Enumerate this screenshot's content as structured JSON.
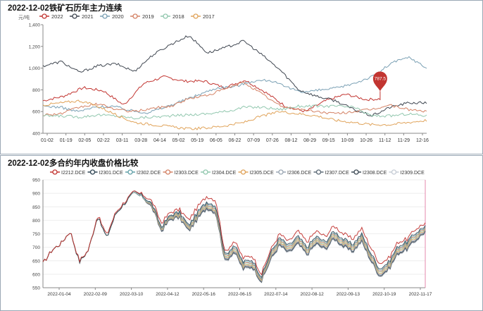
{
  "panels": [
    {
      "title": "2022-12-02铁矿石历年主力连续",
      "chart_data": {
        "type": "line",
        "ylabel": "元/吨",
        "ylim": [
          400,
          1400
        ],
        "yticks": [
          400,
          600,
          800,
          1000,
          1200,
          1400
        ],
        "x_ticklabels": [
          "01-02",
          "01-19",
          "02-05",
          "02-22",
          "03-11",
          "03-28",
          "04-14",
          "05-02",
          "05-19",
          "06-05",
          "06-22",
          "07-09",
          "07-26",
          "08-12",
          "08-29",
          "09-15",
          "10-09",
          "10-26",
          "11-12",
          "11-29",
          "12-16"
        ],
        "legend_position": "top-left",
        "grid": false,
        "annotation": {
          "series": "2022",
          "value": 787.5,
          "label": "787.5",
          "color": "#c23531"
        },
        "series": [
          {
            "name": "2022",
            "color": "#c23531",
            "values": [
              700,
              740,
              820,
              790,
              660,
              860,
              920,
              880,
              880,
              820,
              890,
              780,
              650,
              600,
              700,
              760,
              710,
              720,
              710,
              787.5
            ]
          },
          {
            "name": "2021",
            "color": "#3f4650",
            "values": [
              1020,
              1060,
              960,
              1020,
              1040,
              970,
              1120,
              1220,
              1300,
              1140,
              1190,
              1250,
              1120,
              980,
              800,
              740,
              700,
              620,
              560,
              640,
              680,
              680
            ]
          },
          {
            "name": "2020",
            "color": "#7aa0b4",
            "values": [
              650,
              640,
              600,
              640,
              650,
              610,
              590,
              640,
              700,
              760,
              820,
              830,
              880,
              890,
              820,
              780,
              800,
              820,
              870,
              930,
              1050,
              1100,
              1000
            ]
          },
          {
            "name": "2019",
            "color": "#d48265",
            "values": [
              570,
              580,
              640,
              670,
              620,
              600,
              630,
              650,
              720,
              750,
              810,
              870,
              760,
              650,
              620,
              600,
              580,
              600,
              620,
              660,
              620,
              600
            ]
          },
          {
            "name": "2018",
            "color": "#91c7ae",
            "values": [
              560,
              560,
              550,
              570,
              560,
              540,
              550,
              560,
              570,
              580,
              600,
              640,
              640,
              620,
              650,
              650,
              650,
              640,
              560,
              560,
              580,
              560
            ]
          },
          {
            "name": "2017",
            "color": "#e0a35a",
            "values": [
              660,
              680,
              700,
              650,
              570,
              500,
              480,
              460,
              440,
              450,
              470,
              500,
              560,
              600,
              580,
              560,
              520,
              500,
              480,
              480,
              500,
              520
            ]
          }
        ]
      }
    },
    {
      "title": "2022-12-02多合约年内收盘价格比较",
      "chart_data": {
        "type": "line",
        "ylim": [
          550,
          950
        ],
        "yticks": [
          550,
          600,
          650,
          700,
          750,
          800,
          850,
          900,
          950
        ],
        "x_ticklabels": [
          "2022-01-04",
          "2022-02-09",
          "2022-03-10",
          "2022-04-12",
          "2022-05-16",
          "2022-06-15",
          "2022-07-14",
          "2022-08-12",
          "2022-09-13",
          "2022-10-19",
          "2022-11-17"
        ],
        "legend_position": "top",
        "grid": true,
        "x_dates": [
          "2022-01-04",
          "2022-01-14",
          "2022-01-25",
          "2022-02-09",
          "2022-02-17",
          "2022-02-25",
          "2022-03-04",
          "2022-03-10",
          "2022-03-16",
          "2022-03-23",
          "2022-03-30",
          "2022-04-06",
          "2022-04-12",
          "2022-04-19",
          "2022-04-26",
          "2022-05-06",
          "2022-05-16",
          "2022-05-23",
          "2022-05-30",
          "2022-06-07",
          "2022-06-15",
          "2022-06-22",
          "2022-06-29",
          "2022-07-06",
          "2022-07-14",
          "2022-07-21",
          "2022-07-28",
          "2022-08-04",
          "2022-08-12",
          "2022-08-19",
          "2022-08-26",
          "2022-09-02",
          "2022-09-13",
          "2022-09-20",
          "2022-09-27",
          "2022-10-11",
          "2022-10-19",
          "2022-10-26",
          "2022-11-02",
          "2022-11-09",
          "2022-11-17",
          "2022-11-24",
          "2022-12-02"
        ],
        "series": [
          {
            "name": "I2212.DCE",
            "color": "#c23531",
            "values": [
              640,
              690,
              715,
              760,
              650,
              690,
              820,
              745,
              830,
              870,
              905,
              895,
              870,
              790,
              830,
              840,
              800,
              850,
              890,
              875,
              680,
              725,
              660,
              670,
              600,
              690,
              750,
              720,
              760,
              720,
              760,
              740,
              780,
              750,
              730,
              770,
              700,
              640,
              660,
              720,
              730,
              770,
              790
            ]
          },
          {
            "name": "I2301.DCE",
            "color": "#2f4554",
            "values": [
              640,
              690,
              715,
              760,
              645,
              690,
              815,
              735,
              825,
              865,
              905,
              890,
              860,
              775,
              820,
              830,
              780,
              830,
              870,
              855,
              670,
              710,
              645,
              655,
              590,
              680,
              735,
              705,
              740,
              700,
              740,
              720,
              760,
              730,
              710,
              750,
              680,
              620,
              645,
              705,
              720,
              755,
              780
            ]
          },
          {
            "name": "I2302.DCE",
            "color": "#61a0a8",
            "values": [
              640,
              690,
              715,
              760,
              645,
              690,
              815,
              735,
              825,
              865,
              900,
              885,
              858,
              772,
              817,
              826,
              776,
              826,
              866,
              850,
              666,
              705,
              640,
              650,
              585,
              676,
              730,
              700,
              735,
              695,
              735,
              715,
              755,
              725,
              705,
              745,
              675,
              615,
              640,
              700,
              715,
              750,
              776
            ]
          },
          {
            "name": "I2303.DCE",
            "color": "#d48265",
            "values": [
              640,
              690,
              715,
              760,
              645,
              690,
              815,
              735,
              825,
              865,
              900,
              885,
              856,
              770,
              815,
              823,
              773,
              822,
              862,
              846,
              662,
              701,
              636,
              646,
              582,
              672,
              726,
              696,
              731,
              691,
              731,
              711,
              751,
              721,
              701,
              741,
              671,
              611,
              636,
              696,
              711,
              746,
              773
            ]
          },
          {
            "name": "I2304.DCE",
            "color": "#91c7ae",
            "values": [
              640,
              690,
              715,
              760,
              645,
              690,
              815,
              735,
              825,
              865,
              900,
              885,
              854,
              768,
              812,
              820,
              770,
              818,
              858,
              842,
              658,
              697,
              632,
              642,
              580,
              668,
              722,
              692,
              727,
              687,
              727,
              707,
              747,
              717,
              697,
              737,
              667,
              607,
              632,
              692,
              707,
              742,
              770
            ]
          },
          {
            "name": "I2305.DCE",
            "color": "#e0a35a",
            "values": [
              640,
              690,
              715,
              760,
              645,
              690,
              815,
              735,
              825,
              865,
              900,
              885,
              852,
              766,
              810,
              817,
              767,
              815,
              855,
              838,
              655,
              693,
              628,
              638,
              578,
              664,
              718,
              688,
              723,
              683,
              723,
              703,
              743,
              713,
              693,
              733,
              663,
              603,
              628,
              688,
              703,
              738,
              767
            ]
          },
          {
            "name": "I2306.DCE",
            "color": "#9ba7b4",
            "values": [
              640,
              690,
              715,
              760,
              645,
              690,
              815,
              735,
              825,
              865,
              900,
              885,
              850,
              764,
              808,
              814,
              764,
              812,
              852,
              835,
              652,
              690,
              625,
              635,
              576,
              660,
              714,
              684,
              719,
              679,
              719,
              699,
              739,
              709,
              689,
              729,
              659,
              599,
              625,
              684,
              699,
              734,
              764
            ]
          },
          {
            "name": "I2307.DCE",
            "color": "#5d6b77",
            "values": [
              640,
              690,
              715,
              760,
              645,
              690,
              815,
              735,
              825,
              865,
              900,
              885,
              848,
              762,
              806,
              812,
              762,
              809,
              849,
              832,
              649,
              687,
              622,
              632,
              574,
              657,
              711,
              681,
              716,
              676,
              716,
              696,
              736,
              706,
              686,
              726,
              656,
              596,
              622,
              681,
              696,
              731,
              761
            ]
          },
          {
            "name": "I2308.DCE",
            "color": "#3d4a55",
            "values": [
              640,
              690,
              715,
              760,
              645,
              690,
              815,
              735,
              825,
              865,
              900,
              885,
              846,
              760,
              804,
              810,
              760,
              806,
              846,
              829,
              646,
              684,
              619,
              629,
              572,
              654,
              708,
              678,
              713,
              673,
              713,
              693,
              733,
              703,
              683,
              723,
              653,
              593,
              619,
              678,
              693,
              728,
              758
            ]
          },
          {
            "name": "I2309.DCE",
            "color": "#c7cdd6",
            "values": [
              640,
              690,
              715,
              760,
              645,
              690,
              815,
              735,
              825,
              865,
              900,
              885,
              844,
              758,
              802,
              808,
              758,
              803,
              843,
              826,
              643,
              681,
              616,
              626,
              570,
              651,
              705,
              675,
              710,
              670,
              710,
              690,
              730,
              700,
              680,
              720,
              650,
              590,
              616,
              675,
              690,
              725,
              755
            ]
          }
        ]
      }
    }
  ]
}
